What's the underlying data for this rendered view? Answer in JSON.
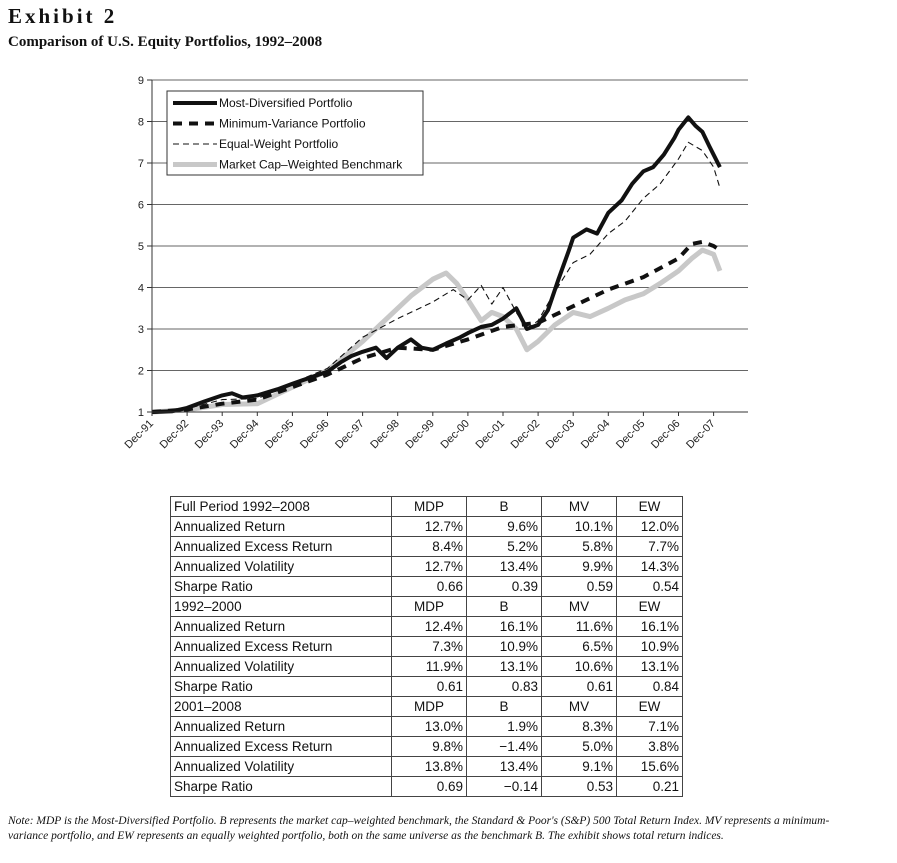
{
  "exhibit_label": "Exhibit 2",
  "subtitle": "Comparison of U.S. Equity Portfolios, 1992–2008",
  "chart_data": {
    "type": "line",
    "ylim": [
      1,
      9
    ],
    "yticks": [
      "1",
      "2",
      "3",
      "4",
      "5",
      "6",
      "7",
      "8",
      "9"
    ],
    "xticks": [
      "Dec-91",
      "Dec-92",
      "Dec-93",
      "Dec-94",
      "Dec-95",
      "Dec-96",
      "Dec-97",
      "Dec-98",
      "Dec-99",
      "Dec-00",
      "Dec-01",
      "Dec-02",
      "Dec-03",
      "Dec-04",
      "Dec-05",
      "Dec-06",
      "Dec-07"
    ],
    "xlim": [
      1991.92,
      2008.9
    ],
    "grid": "horizontal",
    "legend_position": "top-left",
    "series": [
      {
        "name": "Most-Diversified Portfolio",
        "style": "thick-solid",
        "color": "#111111",
        "points": [
          [
            1991.92,
            1.0
          ],
          [
            1992.5,
            1.02
          ],
          [
            1992.92,
            1.1
          ],
          [
            1993.4,
            1.25
          ],
          [
            1993.92,
            1.4
          ],
          [
            1994.2,
            1.45
          ],
          [
            1994.5,
            1.35
          ],
          [
            1994.92,
            1.4
          ],
          [
            1995.5,
            1.55
          ],
          [
            1995.92,
            1.68
          ],
          [
            1996.5,
            1.85
          ],
          [
            1996.92,
            1.97
          ],
          [
            1997.3,
            2.2
          ],
          [
            1997.6,
            2.35
          ],
          [
            1997.92,
            2.45
          ],
          [
            1998.3,
            2.55
          ],
          [
            1998.6,
            2.3
          ],
          [
            1998.92,
            2.55
          ],
          [
            1999.3,
            2.75
          ],
          [
            1999.6,
            2.55
          ],
          [
            1999.92,
            2.5
          ],
          [
            2000.3,
            2.65
          ],
          [
            2000.7,
            2.8
          ],
          [
            2000.92,
            2.9
          ],
          [
            2001.3,
            3.05
          ],
          [
            2001.6,
            3.1
          ],
          [
            2001.92,
            3.25
          ],
          [
            2002.3,
            3.5
          ],
          [
            2002.6,
            3.0
          ],
          [
            2002.92,
            3.1
          ],
          [
            2003.2,
            3.45
          ],
          [
            2003.5,
            4.2
          ],
          [
            2003.8,
            4.9
          ],
          [
            2003.92,
            5.2
          ],
          [
            2004.3,
            5.4
          ],
          [
            2004.6,
            5.3
          ],
          [
            2004.92,
            5.8
          ],
          [
            2005.3,
            6.1
          ],
          [
            2005.6,
            6.5
          ],
          [
            2005.92,
            6.8
          ],
          [
            2006.2,
            6.9
          ],
          [
            2006.5,
            7.2
          ],
          [
            2006.8,
            7.6
          ],
          [
            2006.92,
            7.8
          ],
          [
            2007.2,
            8.1
          ],
          [
            2007.4,
            7.9
          ],
          [
            2007.6,
            7.75
          ],
          [
            2007.8,
            7.4
          ],
          [
            2007.92,
            7.2
          ],
          [
            2008.1,
            6.9
          ]
        ]
      },
      {
        "name": "Minimum-Variance Portfolio",
        "style": "thick-dashed",
        "color": "#111111",
        "points": [
          [
            1991.92,
            1.0
          ],
          [
            1992.92,
            1.06
          ],
          [
            1993.92,
            1.2
          ],
          [
            1994.92,
            1.3
          ],
          [
            1995.92,
            1.6
          ],
          [
            1996.92,
            1.9
          ],
          [
            1997.92,
            2.3
          ],
          [
            1998.92,
            2.55
          ],
          [
            1999.92,
            2.5
          ],
          [
            2000.92,
            2.75
          ],
          [
            2001.92,
            3.05
          ],
          [
            2002.92,
            3.15
          ],
          [
            2003.92,
            3.55
          ],
          [
            2004.92,
            3.95
          ],
          [
            2005.92,
            4.25
          ],
          [
            2006.92,
            4.7
          ],
          [
            2007.3,
            5.05
          ],
          [
            2007.6,
            5.1
          ],
          [
            2007.92,
            5.0
          ],
          [
            2008.1,
            4.9
          ]
        ]
      },
      {
        "name": "Equal-Weight Portfolio",
        "style": "thin-dashed",
        "color": "#111111",
        "points": [
          [
            1991.92,
            1.0
          ],
          [
            1992.92,
            1.08
          ],
          [
            1993.92,
            1.3
          ],
          [
            1994.92,
            1.32
          ],
          [
            1995.92,
            1.7
          ],
          [
            1996.92,
            2.05
          ],
          [
            1997.92,
            2.8
          ],
          [
            1998.92,
            3.25
          ],
          [
            1999.92,
            3.65
          ],
          [
            2000.5,
            3.95
          ],
          [
            2000.92,
            3.7
          ],
          [
            2001.3,
            4.05
          ],
          [
            2001.6,
            3.6
          ],
          [
            2001.92,
            4.0
          ],
          [
            2002.3,
            3.4
          ],
          [
            2002.6,
            3.0
          ],
          [
            2002.92,
            3.2
          ],
          [
            2003.4,
            3.9
          ],
          [
            2003.92,
            4.6
          ],
          [
            2004.4,
            4.8
          ],
          [
            2004.92,
            5.3
          ],
          [
            2005.4,
            5.6
          ],
          [
            2005.92,
            6.15
          ],
          [
            2006.4,
            6.5
          ],
          [
            2006.92,
            7.1
          ],
          [
            2007.2,
            7.5
          ],
          [
            2007.6,
            7.3
          ],
          [
            2007.92,
            6.9
          ],
          [
            2008.1,
            6.4
          ]
        ]
      },
      {
        "name": "Market Cap–Weighted Benchmark",
        "style": "thick-solid",
        "color": "#c8c8c8",
        "points": [
          [
            1991.92,
            1.0
          ],
          [
            1992.92,
            1.05
          ],
          [
            1993.92,
            1.18
          ],
          [
            1994.92,
            1.2
          ],
          [
            1995.92,
            1.6
          ],
          [
            1996.92,
            2.0
          ],
          [
            1997.92,
            2.7
          ],
          [
            1998.92,
            3.5
          ],
          [
            1999.3,
            3.8
          ],
          [
            1999.92,
            4.2
          ],
          [
            2000.3,
            4.35
          ],
          [
            2000.6,
            4.1
          ],
          [
            2000.92,
            3.7
          ],
          [
            2001.3,
            3.2
          ],
          [
            2001.6,
            3.4
          ],
          [
            2001.92,
            3.3
          ],
          [
            2002.3,
            3.0
          ],
          [
            2002.6,
            2.5
          ],
          [
            2002.92,
            2.7
          ],
          [
            2003.4,
            3.1
          ],
          [
            2003.92,
            3.4
          ],
          [
            2004.4,
            3.3
          ],
          [
            2004.92,
            3.5
          ],
          [
            2005.4,
            3.7
          ],
          [
            2005.92,
            3.85
          ],
          [
            2006.4,
            4.1
          ],
          [
            2006.92,
            4.4
          ],
          [
            2007.3,
            4.7
          ],
          [
            2007.6,
            4.9
          ],
          [
            2007.92,
            4.8
          ],
          [
            2008.1,
            4.4
          ]
        ]
      }
    ]
  },
  "table": {
    "rows": [
      {
        "type": "hdr",
        "cells": [
          "Full Period 1992–2008",
          "MDP",
          "B",
          "MV",
          "EW"
        ]
      },
      {
        "type": "row",
        "cells": [
          "Annualized Return",
          "12.7%",
          "9.6%",
          "10.1%",
          "12.0%"
        ]
      },
      {
        "type": "row",
        "cells": [
          "Annualized Excess Return",
          "8.4%",
          "5.2%",
          "5.8%",
          "7.7%"
        ]
      },
      {
        "type": "row",
        "cells": [
          "Annualized Volatility",
          "12.7%",
          "13.4%",
          "9.9%",
          "14.3%"
        ]
      },
      {
        "type": "row",
        "cells": [
          "Sharpe Ratio",
          "0.66",
          "0.39",
          "0.59",
          "0.54"
        ]
      },
      {
        "type": "hdr",
        "cells": [
          "1992–2000",
          "MDP",
          "B",
          "MV",
          "EW"
        ]
      },
      {
        "type": "row",
        "cells": [
          "Annualized Return",
          "12.4%",
          "16.1%",
          "11.6%",
          "16.1%"
        ]
      },
      {
        "type": "row",
        "cells": [
          "Annualized Excess Return",
          "7.3%",
          "10.9%",
          "6.5%",
          "10.9%"
        ]
      },
      {
        "type": "row",
        "cells": [
          "Annualized Volatility",
          "11.9%",
          "13.1%",
          "10.6%",
          "13.1%"
        ]
      },
      {
        "type": "row",
        "cells": [
          "Sharpe Ratio",
          "0.61",
          "0.83",
          "0.61",
          "0.84"
        ]
      },
      {
        "type": "hdr",
        "cells": [
          "2001–2008",
          "MDP",
          "B",
          "MV",
          "EW"
        ]
      },
      {
        "type": "row",
        "cells": [
          "Annualized Return",
          "13.0%",
          "1.9%",
          "8.3%",
          "7.1%"
        ]
      },
      {
        "type": "row",
        "cells": [
          "Annualized Excess Return",
          "9.8%",
          "−1.4%",
          "5.0%",
          "3.8%"
        ]
      },
      {
        "type": "row",
        "cells": [
          "Annualized Volatility",
          "13.8%",
          "13.4%",
          "9.1%",
          "15.6%"
        ]
      },
      {
        "type": "row",
        "cells": [
          "Sharpe Ratio",
          "0.69",
          "−0.14",
          "0.53",
          "0.21"
        ]
      }
    ]
  },
  "note": "Note: MDP is the Most-Diversified Portfolio. B represents the market cap–weighted benchmark, the Standard & Poor's (S&P) 500 Total Return Index. MV represents a minimum-variance portfolio, and EW represents an equally weighted portfolio, both on the same universe as the benchmark B. The exhibit shows total return indices."
}
